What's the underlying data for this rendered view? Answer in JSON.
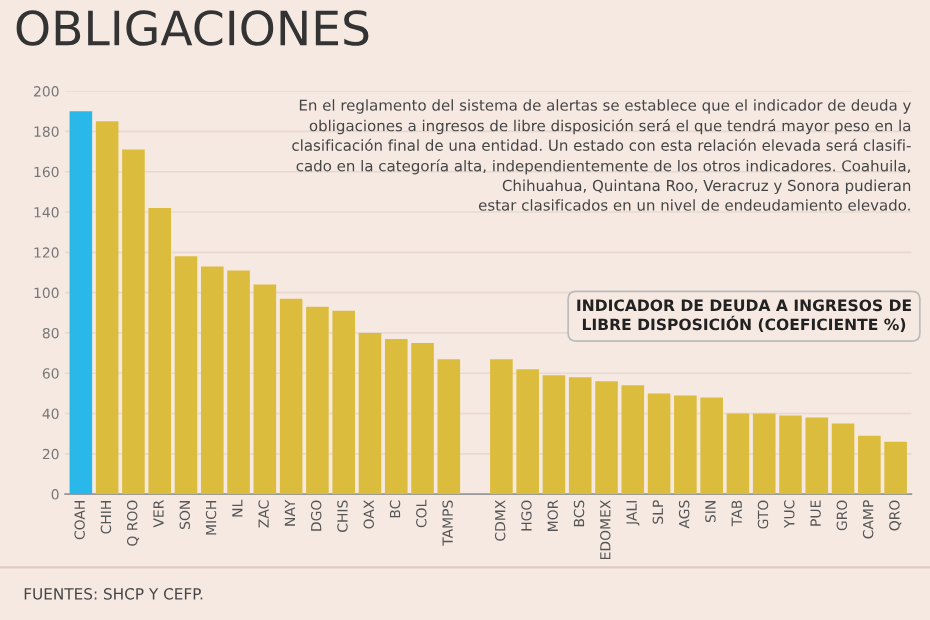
{
  "chart_data": {
    "type": "bar",
    "title": "OBLIGACIONES",
    "ylabel": "INDICADOR DE DEUDA A INGRESOS DE LIBRE DISPOSICIÓN (COEFICIENTE %)",
    "categories": [
      "COAH",
      "CHIH",
      "Q ROO",
      "VER",
      "SON",
      "MICH",
      "NL",
      "ZAC",
      "NAY",
      "DGO",
      "CHIS",
      "OAX",
      "BC",
      "COL",
      "TAMPS",
      null,
      "CDMX",
      "HGO",
      "MOR",
      "BCS",
      "EDOMEX",
      "JALI",
      "SLP",
      "AGS",
      "SIN",
      "TAB",
      "GTO",
      "YUC",
      "PUE",
      "GRO",
      "CAMP",
      "QRO"
    ],
    "values": [
      190,
      185,
      171,
      142,
      118,
      113,
      111,
      104,
      97,
      93,
      91,
      80,
      77,
      75,
      67,
      null,
      67,
      62,
      59,
      58,
      56,
      54,
      50,
      49,
      48,
      40,
      40,
      39,
      38,
      35,
      29,
      26
    ],
    "colors": [
      "#2ab7ea",
      "#dcbc3c",
      "#dcbc3c",
      "#dcbc3c",
      "#dcbc3c",
      "#dcbc3c",
      "#dcbc3c",
      "#dcbc3c",
      "#dcbc3c",
      "#dcbc3c",
      "#dcbc3c",
      "#dcbc3c",
      "#dcbc3c",
      "#dcbc3c",
      "#dcbc3c",
      "#dcbc3c",
      "#dcbc3c",
      "#dcbc3c",
      "#dcbc3c",
      "#dcbc3c",
      "#dcbc3c",
      "#dcbc3c",
      "#dcbc3c",
      "#dcbc3c",
      "#dcbc3c",
      "#dcbc3c",
      "#dcbc3c",
      "#dcbc3c",
      "#dcbc3c",
      "#dcbc3c",
      "#dcbc3c",
      "#dcbc3c"
    ],
    "ylim": [
      0,
      200
    ],
    "yticks": [
      0,
      20,
      40,
      60,
      80,
      100,
      120,
      140,
      160,
      180,
      200
    ],
    "grid": "y",
    "legend": false,
    "annotations": [
      "En el reglamento del sistema de alertas se establece que el indicador de deuda y\nobligaciones a ingresos de libre disposición será el que tendrá mayor peso en la\nclasificación final de una entidad. Un estado con esta relación elevada será clasifi-\ncado en la categoría alta, independientemente de los otros indicadores. Coahuila,\nChihuahua, Quintana Roo, Veracruz y Sonora pudieran\nestar clasificados en un nivel de endeudamiento elevado.",
      "FUENTES: SHCP Y CEFP."
    ]
  }
}
